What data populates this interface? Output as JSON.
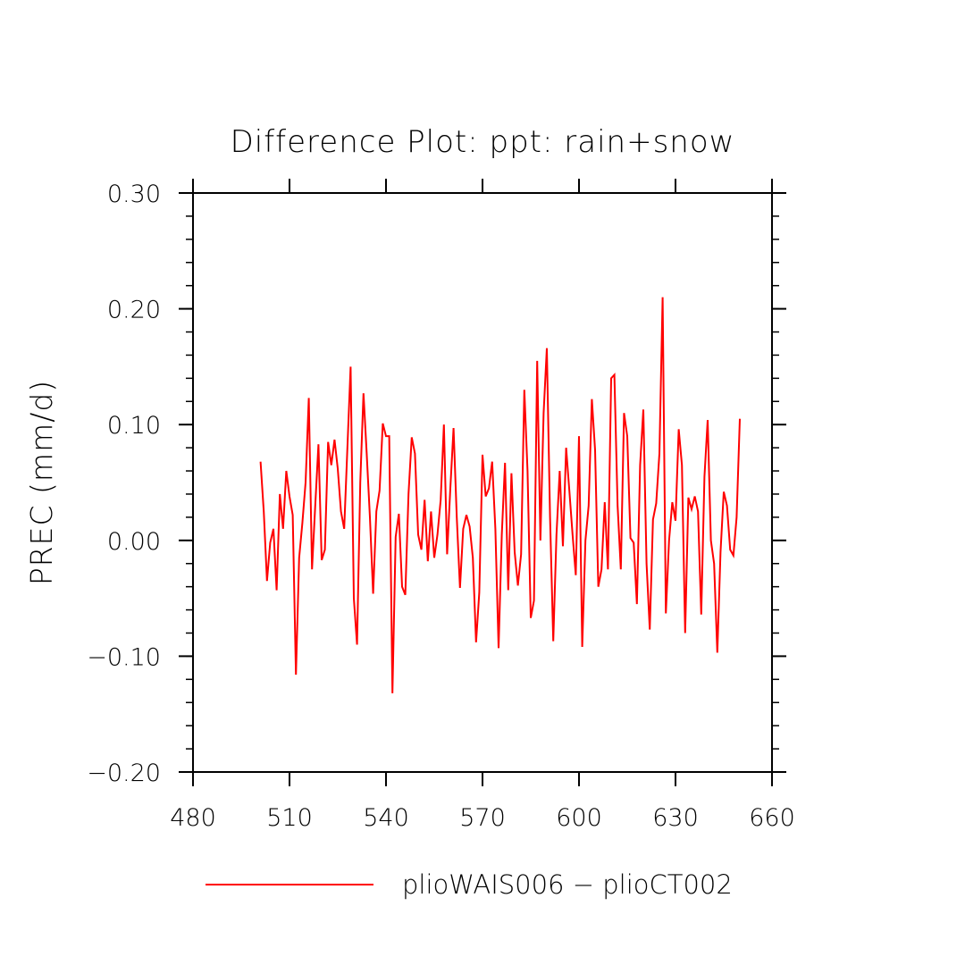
{
  "chart_data": {
    "type": "line",
    "title": "Difference Plot: ppt: rain+snow",
    "ylabel": "PREC  (mm/d)",
    "xlabel": "",
    "xlim": [
      480,
      660
    ],
    "ylim": [
      -0.2,
      0.3
    ],
    "x_ticks": [
      480,
      510,
      540,
      570,
      600,
      630,
      660
    ],
    "x_tick_labels": [
      "480",
      "510",
      "540",
      "570",
      "600",
      "630",
      "660"
    ],
    "y_ticks": [
      -0.2,
      -0.1,
      0.0,
      0.1,
      0.2,
      0.3
    ],
    "y_tick_labels": [
      "−0.20",
      "−0.10",
      "0.00",
      "0.10",
      "0.20",
      "0.30"
    ],
    "grid": false,
    "legend_position": "bottom",
    "series": [
      {
        "name": "plioWAIS006 − plioCT002",
        "color": "#ff0000",
        "x_start": 501,
        "x_step": 1,
        "values": [
          0.068,
          0.025,
          -0.035,
          -0.002,
          0.01,
          -0.043,
          0.04,
          0.01,
          0.06,
          0.038,
          0.022,
          -0.116,
          -0.015,
          0.015,
          0.05,
          0.123,
          -0.025,
          0.03,
          0.083,
          -0.017,
          -0.008,
          0.085,
          0.065,
          0.087,
          0.062,
          0.025,
          0.01,
          0.08,
          0.15,
          -0.05,
          -0.09,
          0.05,
          0.127,
          0.075,
          0.02,
          -0.046,
          0.025,
          0.043,
          0.101,
          0.09,
          0.09,
          -0.132,
          0.003,
          0.023,
          -0.04,
          -0.047,
          0.04,
          0.089,
          0.075,
          0.005,
          -0.008,
          0.035,
          -0.018,
          0.025,
          -0.015,
          0.005,
          0.035,
          0.1,
          -0.012,
          0.045,
          0.097,
          0.02,
          -0.041,
          0.01,
          0.022,
          0.012,
          -0.015,
          -0.088,
          -0.045,
          0.074,
          0.038,
          0.045,
          0.068,
          0.01,
          -0.093,
          0.005,
          0.067,
          -0.043,
          0.058,
          -0.01,
          -0.039,
          -0.012,
          0.13,
          0.06,
          -0.067,
          -0.052,
          0.155,
          0.0,
          0.11,
          0.166,
          0.02,
          -0.087,
          0.005,
          0.06,
          -0.005,
          0.08,
          0.043,
          0.005,
          -0.03,
          0.09,
          -0.092,
          0.0,
          0.03,
          0.122,
          0.078,
          -0.04,
          -0.025,
          0.033,
          -0.025,
          0.14,
          0.143,
          0.03,
          -0.025,
          0.11,
          0.09,
          0.002,
          -0.002,
          -0.055,
          0.065,
          0.113,
          -0.02,
          -0.077,
          0.018,
          0.032,
          0.075,
          0.21,
          -0.063,
          0.0,
          0.033,
          0.017,
          0.096,
          0.065,
          -0.08,
          0.037,
          0.027,
          0.038,
          0.025,
          -0.064,
          0.055,
          0.104,
          0.0,
          -0.02,
          -0.097,
          -0.01,
          0.042,
          0.03,
          -0.008,
          -0.013,
          0.02,
          0.105
        ]
      }
    ]
  }
}
